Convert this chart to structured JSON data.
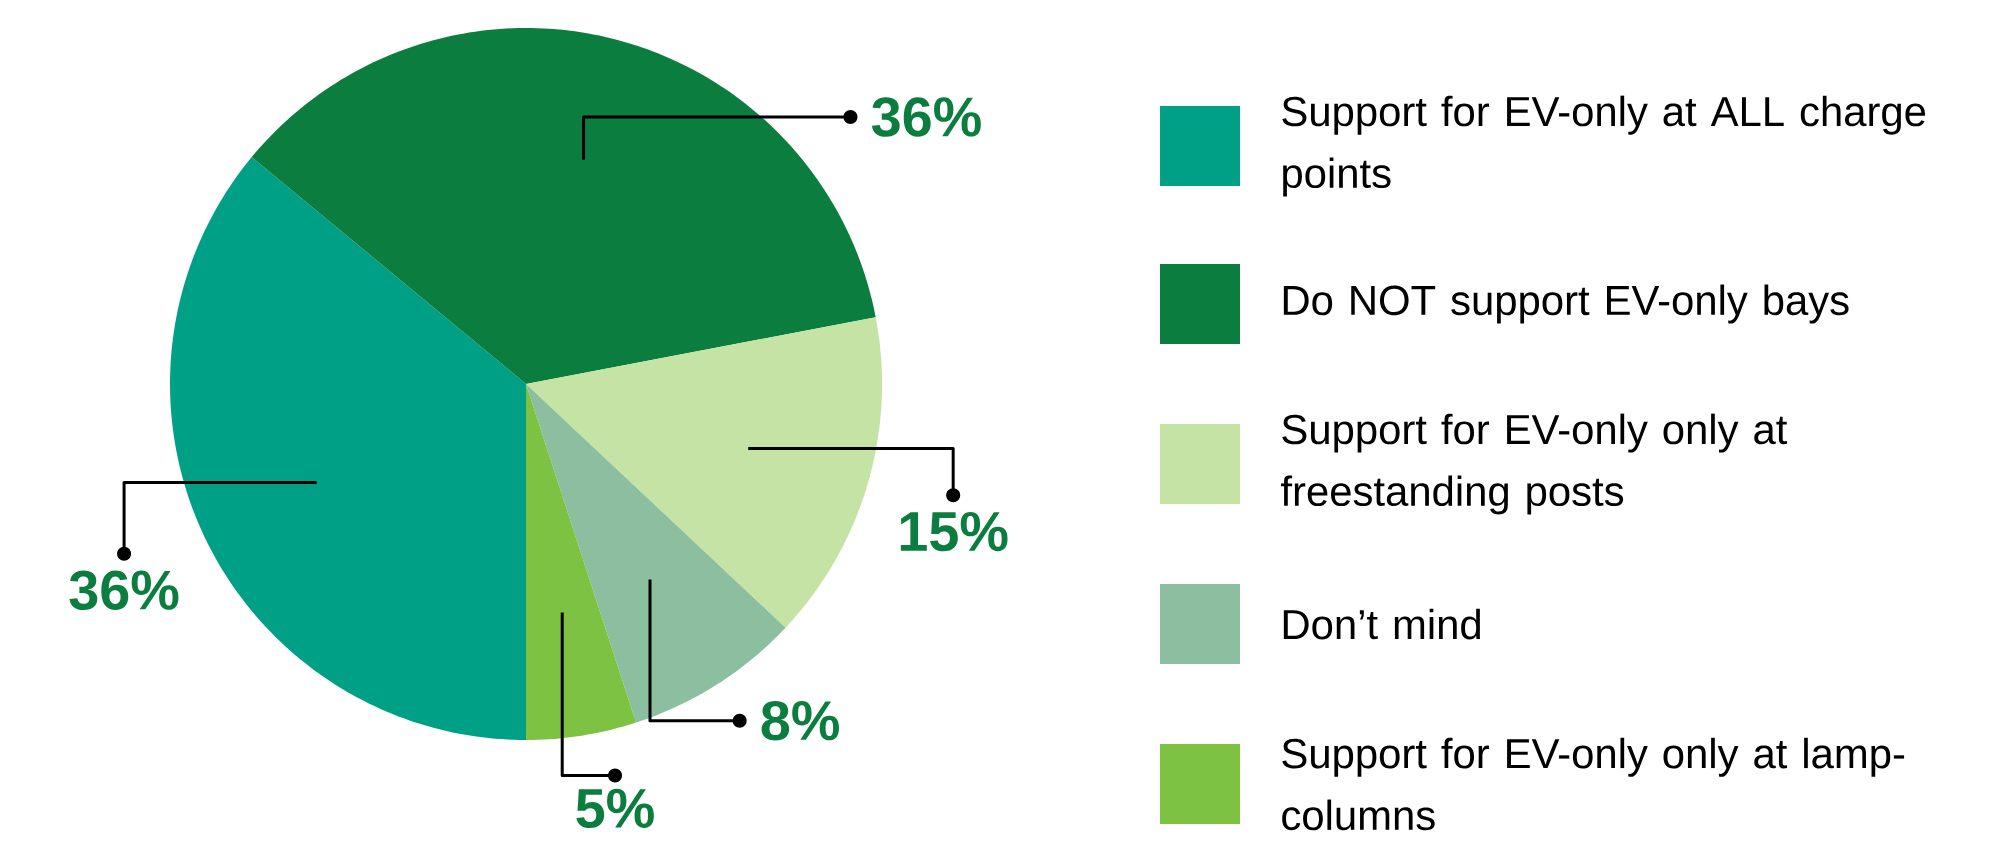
{
  "chart_data": {
    "type": "pie",
    "categories": [
      "Support for EV-only at ALL charge points",
      "Do NOT support EV-only bays",
      "Support for EV-only only at freestanding posts",
      "Don’t mind",
      "Support for EV-only only at lamp-columns"
    ],
    "values": [
      36,
      36,
      15,
      8,
      5
    ],
    "colors": [
      "#00a086",
      "#0b7d3e",
      "#c5e3a5",
      "#8bbfa0",
      "#7dc242"
    ],
    "value_labels": [
      "36%",
      "36%",
      "15%",
      "8%",
      "5%"
    ],
    "legend": "right"
  }
}
